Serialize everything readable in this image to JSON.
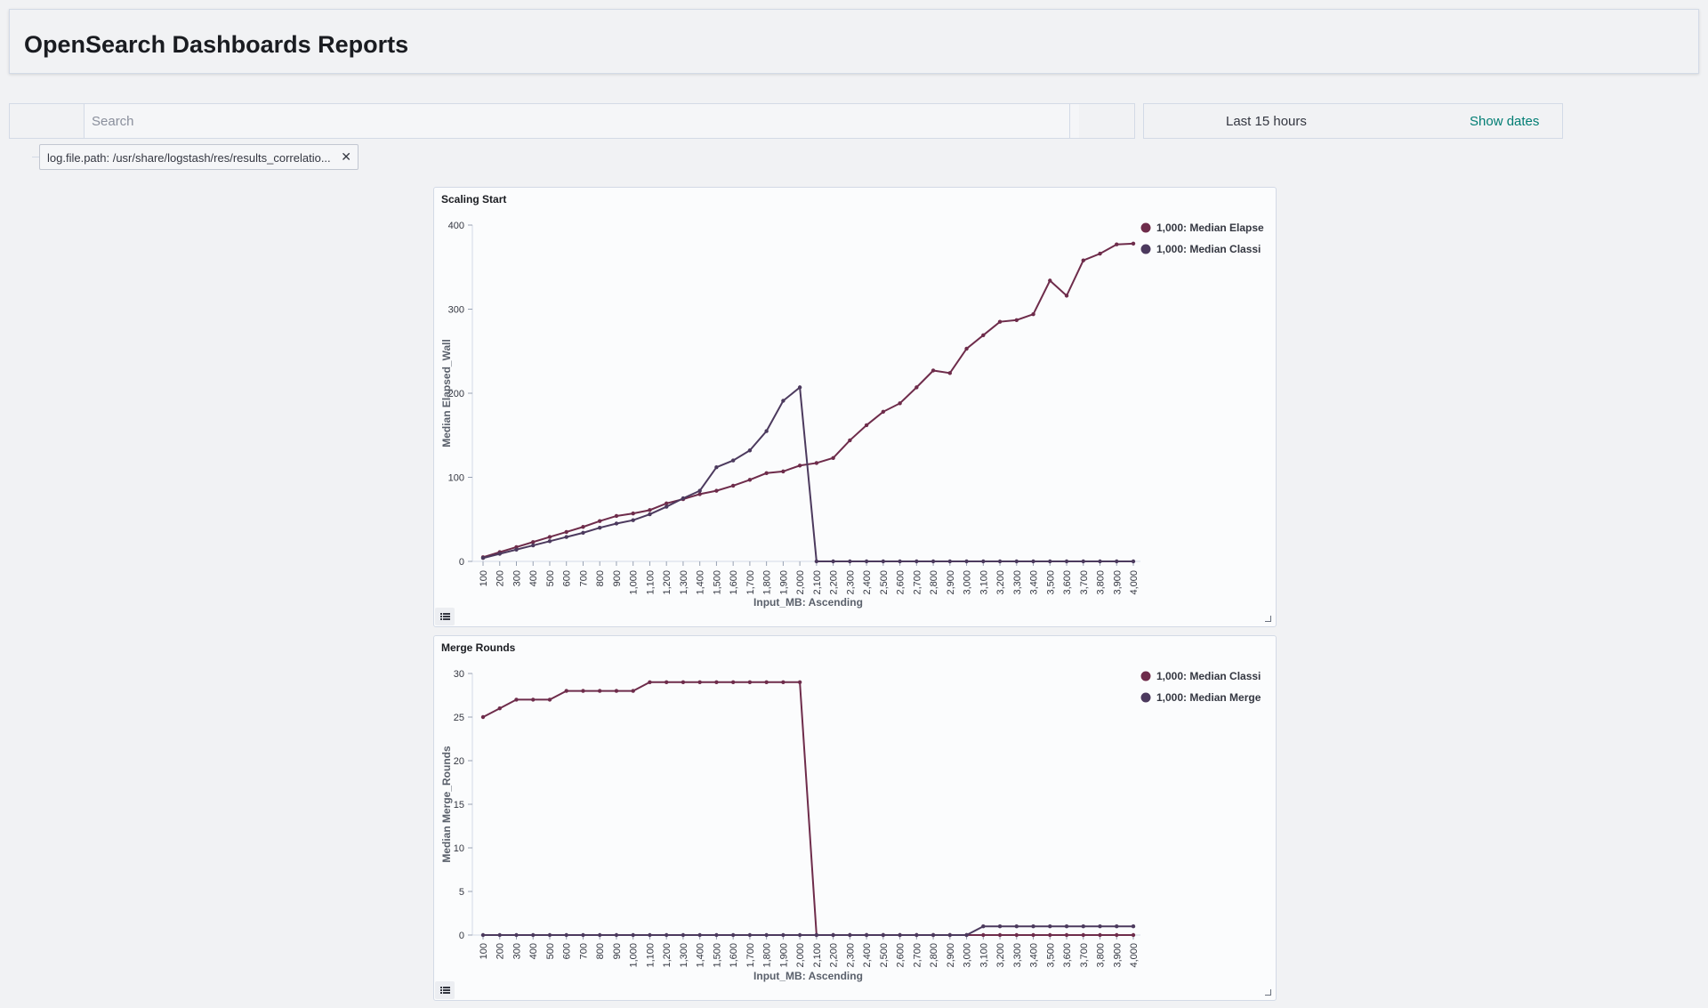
{
  "header": {
    "title": "OpenSearch Dashboards Reports"
  },
  "query_bar": {
    "search_placeholder": "Search"
  },
  "date_picker": {
    "range": "Last 15 hours",
    "show_dates": "Show dates"
  },
  "filters": [
    {
      "label": "log.file.path: /usr/share/logstash/res/results_correlatio..."
    }
  ],
  "icons": {
    "filter_remove": "close-icon",
    "legend_toggle": "list-icon",
    "resize": "resize-handle-icon"
  },
  "colors": {
    "series_a": "#6e2c4b",
    "series_b": "#4c3a5e",
    "link": "#017d73"
  },
  "chart_data": [
    {
      "type": "line",
      "title": "Scaling Start",
      "xlabel": "Input_MB: Ascending",
      "ylabel": "Median Elapsed_Wall",
      "ylim": [
        0,
        400
      ],
      "yticks": [
        0,
        100,
        200,
        300,
        400
      ],
      "legend_position": "top-right",
      "categories": [
        "100",
        "200",
        "300",
        "400",
        "500",
        "600",
        "700",
        "800",
        "900",
        "1,000",
        "1,100",
        "1,200",
        "1,300",
        "1,400",
        "1,500",
        "1,600",
        "1,700",
        "1,800",
        "1,900",
        "2,000",
        "2,100",
        "2,200",
        "2,300",
        "2,400",
        "2,500",
        "2,600",
        "2,700",
        "2,800",
        "2,900",
        "3,000",
        "3,100",
        "3,200",
        "3,300",
        "3,400",
        "3,500",
        "3,600",
        "3,700",
        "3,800",
        "3,900",
        "4,000"
      ],
      "series": [
        {
          "name": "1,000: Median Elapse",
          "color": "#6e2c4b",
          "values": [
            5,
            11,
            17,
            23,
            29,
            35,
            41,
            48,
            54,
            57,
            61,
            69,
            74,
            80,
            84,
            90,
            97,
            105,
            107,
            114,
            117,
            123,
            144,
            162,
            178,
            188,
            207,
            227,
            224,
            253,
            269,
            285,
            287,
            294,
            334,
            316,
            358,
            366,
            377,
            378
          ]
        },
        {
          "name": "1,000: Median Classi",
          "color": "#4c3a5e",
          "values": [
            4,
            9,
            14,
            19,
            24,
            29,
            34,
            40,
            45,
            49,
            56,
            65,
            75,
            84,
            112,
            120,
            132,
            155,
            191,
            207,
            0,
            0,
            0,
            0,
            0,
            0,
            0,
            0,
            0,
            0,
            0,
            0,
            0,
            0,
            0,
            0,
            0,
            0,
            0,
            0
          ]
        }
      ]
    },
    {
      "type": "line",
      "title": "Merge Rounds",
      "xlabel": "Input_MB: Ascending",
      "ylabel": "Median Merge_Rounds",
      "ylim": [
        0,
        30
      ],
      "yticks": [
        0,
        5,
        10,
        15,
        20,
        25,
        30
      ],
      "legend_position": "top-right",
      "categories": [
        "100",
        "200",
        "300",
        "400",
        "500",
        "600",
        "700",
        "800",
        "900",
        "1,000",
        "1,100",
        "1,200",
        "1,300",
        "1,400",
        "1,500",
        "1,600",
        "1,700",
        "1,800",
        "1,900",
        "2,000",
        "2,100",
        "2,200",
        "2,300",
        "2,400",
        "2,500",
        "2,600",
        "2,700",
        "2,800",
        "2,900",
        "3,000",
        "3,100",
        "3,200",
        "3,300",
        "3,400",
        "3,500",
        "3,600",
        "3,700",
        "3,800",
        "3,900",
        "4,000"
      ],
      "series": [
        {
          "name": "1,000: Median Classi",
          "color": "#6e2c4b",
          "values": [
            25,
            26,
            27,
            27,
            27,
            28,
            28,
            28,
            28,
            28,
            29,
            29,
            29,
            29,
            29,
            29,
            29,
            29,
            29,
            29,
            0,
            0,
            0,
            0,
            0,
            0,
            0,
            0,
            0,
            0,
            0,
            0,
            0,
            0,
            0,
            0,
            0,
            0,
            0,
            0
          ]
        },
        {
          "name": "1,000: Median Merge",
          "color": "#4c3a5e",
          "values": [
            0,
            0,
            0,
            0,
            0,
            0,
            0,
            0,
            0,
            0,
            0,
            0,
            0,
            0,
            0,
            0,
            0,
            0,
            0,
            0,
            0,
            0,
            0,
            0,
            0,
            0,
            0,
            0,
            0,
            0,
            1,
            1,
            1,
            1,
            1,
            1,
            1,
            1,
            1,
            1
          ]
        }
      ]
    }
  ]
}
